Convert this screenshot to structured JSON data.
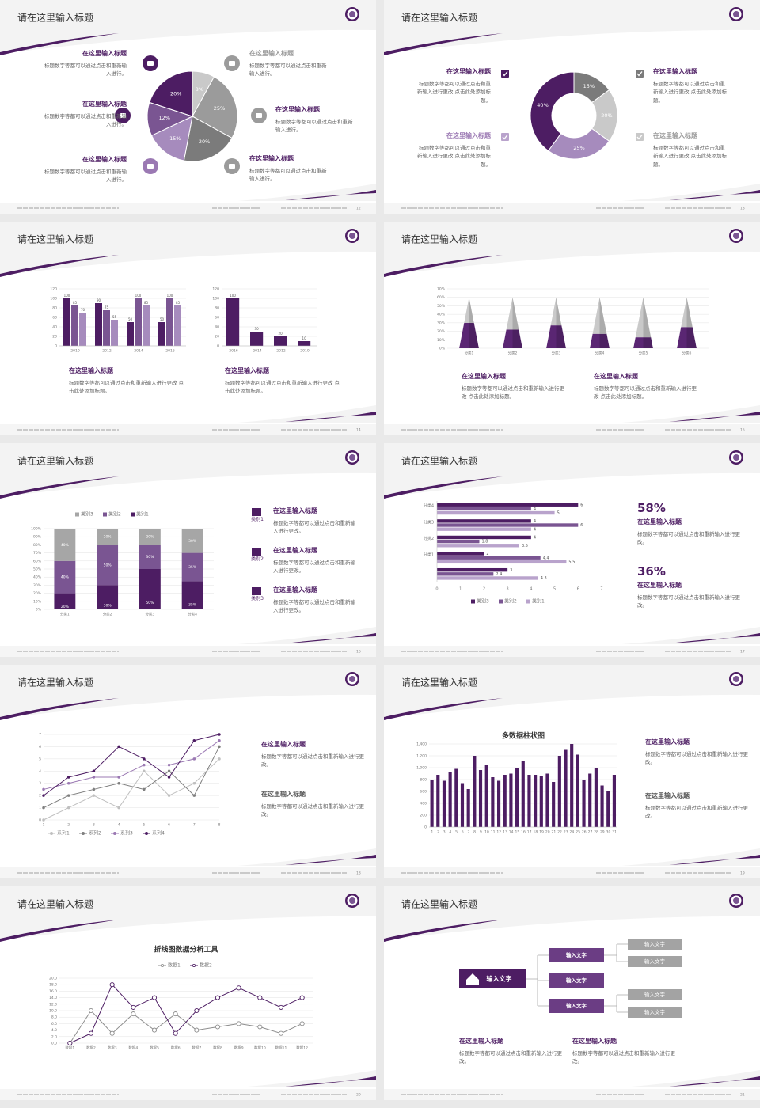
{
  "slides": [
    {
      "title": "请在这里输入标题",
      "page": "12",
      "blocks": [
        {
          "heading": "在这里输入标题",
          "text": "标题数字等都可以通过点击和重新输入进行。"
        },
        {
          "heading": "在这里输入标题",
          "text": "标题数字等都可以通过点击和重新输入进行。"
        },
        {
          "heading": "在这里输入标题",
          "text": "标题数字等都可以通过点击和重新输入进行。"
        },
        {
          "heading": "在这里输入标题",
          "text": "标题数字等都可以通过点击和重新输入进行。"
        },
        {
          "heading": "在这里输入标题",
          "text": "标题数字等都可以通过点击和重新输入进行。"
        },
        {
          "heading": "在这里输入标题",
          "text": "标题数字等都可以通过点击和重新输入进行。"
        }
      ]
    },
    {
      "title": "请在这里输入标题",
      "page": "13",
      "blocks": [
        {
          "heading": "在这里输入标题",
          "text": "标题数字等都可以通过点击和重新输入进行更改 点击此处添加标题。"
        },
        {
          "heading": "在这里输入标题",
          "text": "标题数字等都可以通过点击和重新输入进行更改 点击此处添加标题。"
        },
        {
          "heading": "在这里输入标题",
          "text": "标题数字等都可以通过点击和重新输入进行更改 点击此处添加标题。"
        },
        {
          "heading": "在这里输入标题",
          "text": "标题数字等都可以通过点击和重新输入进行更改 点击此处添加标题。"
        }
      ]
    },
    {
      "title": "请在这里输入标题",
      "page": "14",
      "blocks": [
        {
          "heading": "在这里输入标题",
          "text": "标题数字等都可以通过点击和重新输入进行更改 点击此处添加标题。"
        },
        {
          "heading": "在这里输入标题",
          "text": "标题数字等都可以通过点击和重新输入进行更改 点击此处添加标题。"
        }
      ]
    },
    {
      "title": "请在这里输入标题",
      "page": "15",
      "blocks": [
        {
          "heading": "在这里输入标题",
          "text": "标题数字等都可以通过点击和重新输入进行更改 点击此处添加标题。"
        },
        {
          "heading": "在这里输入标题",
          "text": "标题数字等都可以通过点击和重新输入进行更改 点击此处添加标题。"
        }
      ]
    },
    {
      "title": "请在这里输入标题",
      "page": "16",
      "blocks": [
        {
          "label": "类别1",
          "heading": "在这里输入标题",
          "text": "标题数字等都可以通过点击和重新输入进行更改。"
        },
        {
          "label": "类别2",
          "heading": "在这里输入标题",
          "text": "标题数字等都可以通过点击和重新输入进行更改。"
        },
        {
          "label": "类别3",
          "heading": "在这里输入标题",
          "text": "标题数字等都可以通过点击和重新输入进行更改。"
        }
      ]
    },
    {
      "title": "请在这里输入标题",
      "page": "17",
      "blocks": [
        {
          "stat": "58%",
          "heading": "在这里输入标题",
          "text": "标题数字等都可以通过点击和重新输入进行更改。"
        },
        {
          "stat": "36%",
          "heading": "在这里输入标题",
          "text": "标题数字等都可以通过点击和重新输入进行更改。"
        }
      ]
    },
    {
      "title": "请在这里输入标题",
      "page": "18",
      "blocks": [
        {
          "heading": "在这里输入标题",
          "text": "标题数字等都可以通过点击和重新输入进行更改。"
        },
        {
          "heading": "在这里输入标题",
          "text": "标题数字等都可以通过点击和重新输入进行更改。"
        }
      ]
    },
    {
      "title": "请在这里输入标题",
      "page": "19",
      "blocks": [
        {
          "heading": "在这里输入标题",
          "text": "标题数字等都可以通过点击和重新输入进行更改。"
        },
        {
          "heading": "在这里输入标题",
          "text": "标题数字等都可以通过点击和重新输入进行更改。"
        }
      ]
    },
    {
      "title": "请在这里输入标题",
      "page": "20",
      "blocks": []
    },
    {
      "title": "请在这里输入标题",
      "page": "21",
      "blocks": [
        {
          "heading": "在这里输入标题",
          "text": "标题数字等都可以通过点击和重新输入进行更改。"
        },
        {
          "heading": "在这里输入标题",
          "text": "标题数字等都可以通过点击和重新输入进行更改。"
        }
      ],
      "nodes": [
        {
          "label": "输入文字"
        },
        {
          "label": "输入文字"
        },
        {
          "label": "输入文字"
        },
        {
          "label": "输入文字"
        },
        {
          "label": "输入文字"
        },
        {
          "label": "输入文字"
        },
        {
          "label": "输入文字"
        },
        {
          "label": "输入文字"
        }
      ]
    }
  ],
  "chart_data": [
    {
      "type": "pie",
      "values": [
        8,
        25,
        20,
        15,
        12,
        20
      ],
      "value_labels": [
        "8%",
        "25%",
        "20%",
        "15%",
        "12%",
        "20%"
      ],
      "colors": [
        "#c9c9c9",
        "#9b9b9b",
        "#7b7b7b",
        "#a68bbd",
        "#7a5592",
        "#4d1d63"
      ]
    },
    {
      "type": "donut",
      "values": [
        15,
        20,
        25,
        40
      ],
      "value_labels": [
        "15%",
        "20%",
        "25%",
        "40%"
      ],
      "colors": [
        "#7b7b7b",
        "#c9c9c9",
        "#a68bbd",
        "#4d1d63"
      ]
    },
    {
      "type": "bar",
      "categories": [
        "2010",
        "2012",
        "2014",
        "2016"
      ],
      "series": [
        {
          "color": "#4d1d63",
          "values": [
            100,
            90,
            50,
            50
          ]
        },
        {
          "color": "#7a5592",
          "values": [
            85,
            75,
            100,
            100
          ]
        },
        {
          "color": "#a68bbd",
          "values": [
            70,
            55,
            85,
            85
          ]
        }
      ],
      "ylim": [
        0,
        120
      ],
      "yticks": [
        0,
        20,
        40,
        60,
        80,
        100,
        120
      ],
      "grid": true,
      "data_labels": true
    },
    {
      "type": "bar",
      "categories": [
        "2016",
        "2014",
        "2012",
        "2010"
      ],
      "values": [
        100,
        30,
        20,
        10
      ],
      "color": "#4d1d63",
      "ylim": [
        0,
        120
      ],
      "yticks": [
        0,
        20,
        40,
        60,
        80,
        100,
        120
      ],
      "grid": true,
      "data_labels": true
    },
    {
      "type": "pyramid",
      "categories": [
        "分类1",
        "分类2",
        "分类3",
        "分类4",
        "分类5",
        "分类6"
      ],
      "series": [
        {
          "color": "#5a2673",
          "values": [
            30,
            22,
            27,
            17,
            13,
            25
          ]
        },
        {
          "color": "#c9c9c9",
          "values": [
            30,
            38,
            33,
            43,
            47,
            35
          ]
        }
      ],
      "ylim": [
        0,
        70
      ],
      "yticks": [
        {
          "value": 0,
          "label": "0%"
        },
        {
          "value": 10,
          "label": "10%"
        },
        {
          "value": 20,
          "label": "20%"
        },
        {
          "value": 30,
          "label": "30%"
        },
        {
          "value": 40,
          "label": "40%"
        },
        {
          "value": 50,
          "label": "50%"
        },
        {
          "value": 60,
          "label": "60%"
        },
        {
          "value": 70,
          "label": "70%"
        }
      ],
      "grid": true
    },
    {
      "type": "stacked_bar",
      "categories": [
        "分类1",
        "分类2",
        "分类3",
        "分类4"
      ],
      "series": [
        {
          "name": "类别1",
          "color": "#4d1d63",
          "values": [
            20,
            30,
            50,
            35
          ],
          "value_labels": [
            "20%",
            "30%",
            "50%",
            "35%"
          ]
        },
        {
          "name": "类别2",
          "color": "#7a5592",
          "values": [
            40,
            50,
            30,
            35
          ],
          "value_labels": [
            "40%",
            "50%",
            "30%",
            "35%"
          ]
        },
        {
          "name": "类别3",
          "color": "#a6a6a6",
          "values": [
            40,
            20,
            20,
            30
          ],
          "value_labels": [
            "40%",
            "20%",
            "20%",
            "30%"
          ]
        }
      ],
      "ylim": [
        0,
        100
      ],
      "yticks": [
        {
          "value": 0,
          "label": "0%"
        },
        {
          "value": 10,
          "label": "10%"
        },
        {
          "value": 20,
          "label": "20%"
        },
        {
          "value": 30,
          "label": "30%"
        },
        {
          "value": 40,
          "label": "40%"
        },
        {
          "value": 50,
          "label": "50%"
        },
        {
          "value": 60,
          "label": "60%"
        },
        {
          "value": 70,
          "label": "70%"
        },
        {
          "value": 80,
          "label": "80%"
        },
        {
          "value": 90,
          "label": "90%"
        },
        {
          "value": 100,
          "label": "100%"
        }
      ],
      "grid": true,
      "legend": "top"
    },
    {
      "type": "hbar",
      "categories": [
        null,
        "分类1",
        "分类2",
        "分类3",
        "分类4"
      ],
      "series": [
        {
          "name": "类别3",
          "color": "#4d1d63",
          "values": [
            3,
            2,
            4,
            4,
            6
          ]
        },
        {
          "name": "类别2",
          "color": "#7a5592",
          "values": [
            2.4,
            4.4,
            1.8,
            6,
            4
          ]
        },
        {
          "name": "类别1",
          "color": "#b9a3cc",
          "values": [
            4.3,
            5.5,
            3.5,
            4,
            5
          ]
        }
      ],
      "xlim": [
        0,
        7
      ],
      "xticks": [
        0,
        1,
        2,
        3,
        4,
        5,
        6,
        7
      ],
      "data_labels": true,
      "legend": "bottom"
    },
    {
      "type": "line",
      "x": [
        1,
        2,
        3,
        4,
        5,
        6,
        7,
        8
      ],
      "series": [
        {
          "name": "系列1",
          "color": "#bfbfbf",
          "values": [
            0,
            1,
            2,
            1,
            4,
            2,
            3,
            5
          ]
        },
        {
          "name": "系列2",
          "color": "#7f7f7f",
          "values": [
            1,
            2,
            2.5,
            3,
            2.5,
            4,
            2,
            6
          ]
        },
        {
          "name": "系列3",
          "color": "#9b79b3",
          "values": [
            2.5,
            3,
            3.5,
            3.5,
            4.5,
            4.5,
            5,
            6.5
          ]
        },
        {
          "name": "系列4",
          "color": "#4d1d63",
          "values": [
            2,
            3.5,
            4,
            6,
            5,
            3.5,
            6.5,
            7
          ]
        }
      ],
      "xlim": [
        1,
        8
      ],
      "xticks": [
        1,
        2,
        3,
        4,
        5,
        6,
        7,
        8
      ],
      "ylim": [
        0,
        7
      ],
      "yticks": [
        0,
        1,
        2,
        3,
        4,
        5,
        6,
        7
      ],
      "grid": true,
      "legend": "bottom"
    },
    {
      "type": "bar",
      "title": "多数据柱状图",
      "categories": [
        "1",
        "2",
        "3",
        "4",
        "5",
        "6",
        "7",
        "8",
        "9",
        "10",
        "11",
        "12",
        "13",
        "14",
        "15",
        "16",
        "17",
        "18",
        "19",
        "20",
        "21",
        "22",
        "23",
        "24",
        "25",
        "26",
        "27",
        "28",
        "29",
        "30",
        "31"
      ],
      "values": [
        800,
        880,
        780,
        920,
        980,
        740,
        640,
        1200,
        960,
        1040,
        840,
        780,
        880,
        900,
        1000,
        1120,
        880,
        880,
        860,
        900,
        760,
        1200,
        1300,
        1400,
        1220,
        800,
        900,
        1000,
        700,
        600,
        880
      ],
      "color": "#4d1d63",
      "ylim": [
        0,
        1400
      ],
      "yticks": [
        0,
        200,
        400,
        600,
        800,
        {
          "value": 1000,
          "label": "1,000"
        },
        {
          "value": 1200,
          "label": "1,200"
        },
        {
          "value": 1400,
          "label": "1,400"
        }
      ],
      "grid": true
    },
    {
      "type": "line",
      "title": "折线图数据分析工具",
      "categories": [
        "数据1",
        "数据2",
        "数据3",
        "数据4",
        "数据5",
        "数据6",
        "数据7",
        "数据8",
        "数据9",
        "数据10",
        "数据11",
        "数据12"
      ],
      "series": [
        {
          "name": "数据1",
          "color": "#8c8c8c",
          "values": [
            0,
            10,
            3,
            9,
            4,
            9,
            4,
            5,
            6,
            5,
            3,
            6
          ]
        },
        {
          "name": "数据2",
          "color": "#4d1d63",
          "values": [
            0,
            3,
            18,
            11,
            14,
            3,
            10,
            14,
            17,
            14,
            11,
            14
          ]
        }
      ],
      "ylim": [
        0,
        20
      ],
      "yticks": [
        {
          "value": 0,
          "label": "0.0"
        },
        {
          "value": 2,
          "label": "2.0"
        },
        {
          "value": 4,
          "label": "4.0"
        },
        {
          "value": 6,
          "label": "6.0"
        },
        {
          "value": 8,
          "label": "8.0"
        },
        {
          "value": 10,
          "label": "10.0"
        },
        {
          "value": 12,
          "label": "12.0"
        },
        {
          "value": 14,
          "label": "14.0"
        },
        {
          "value": 16,
          "label": "16.0"
        },
        {
          "value": 18,
          "label": "18.0"
        },
        {
          "value": 20,
          "label": "20.0"
        }
      ],
      "grid": true,
      "markers": true,
      "legend": "top"
    }
  ]
}
